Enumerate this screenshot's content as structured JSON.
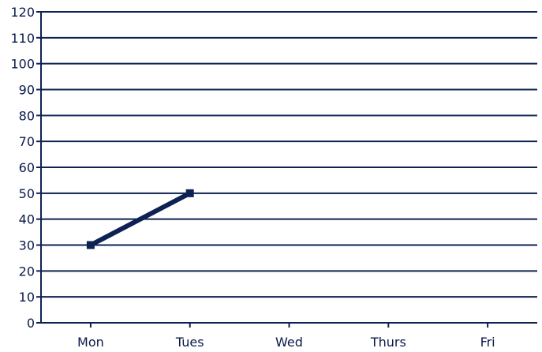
{
  "chart_data": {
    "type": "line",
    "title": "",
    "xlabel": "",
    "ylabel": "",
    "categories": [
      "Mon",
      "Tues",
      "Wed",
      "Thurs",
      "Fri"
    ],
    "y_ticks": [
      0,
      10,
      20,
      30,
      40,
      50,
      60,
      70,
      80,
      90,
      100,
      110,
      120
    ],
    "ylim": [
      0,
      120
    ],
    "grid": true,
    "series": [
      {
        "values": [
          30,
          50,
          null,
          null,
          null
        ],
        "color": "#0d2152",
        "marker": "square"
      }
    ],
    "colors": {
      "axis": "#0d2152",
      "grid": "#0d2152",
      "text": "#0a1a4a"
    }
  }
}
